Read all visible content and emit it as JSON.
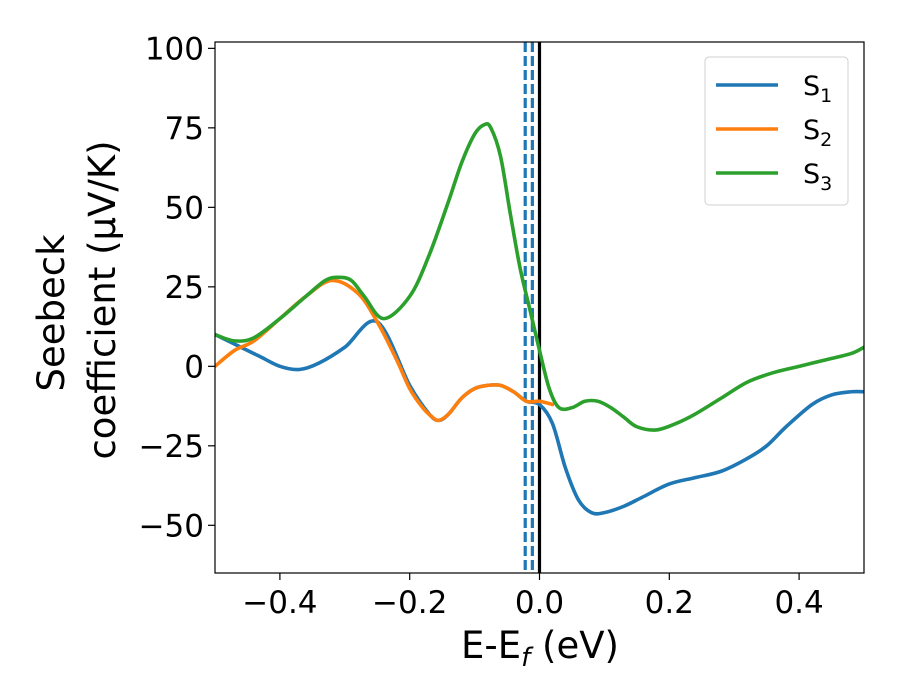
{
  "chart_data": {
    "type": "line",
    "xlabel_main": "E-E",
    "xlabel_sub": "f",
    "xlabel_unit": " (eV)",
    "ylabel_line1": "Seebeck",
    "ylabel_line2": "coefficient  (μV/K)",
    "xlim": [
      -0.5,
      0.5
    ],
    "ylim": [
      -65,
      102
    ],
    "xticks": [
      -0.4,
      -0.2,
      0.0,
      0.2,
      0.4
    ],
    "xtick_labels": [
      "−0.4",
      "−0.2",
      "0.0",
      "0.2",
      "0.4"
    ],
    "yticks": [
      -50,
      -25,
      0,
      25,
      50,
      75,
      100
    ],
    "ytick_labels": [
      "−50",
      "−25",
      "0",
      "25",
      "50",
      "75",
      "100"
    ],
    "grid": false,
    "legend_position": "top-right",
    "vlines": [
      {
        "x": -0.022,
        "style": "dashed",
        "color": "#1f77b4"
      },
      {
        "x": -0.011,
        "style": "dashed",
        "color": "#1f77b4"
      },
      {
        "x": 0.0,
        "style": "solid",
        "color": "#000000"
      }
    ],
    "series": [
      {
        "name": "S",
        "sub": "1",
        "color": "#1f77b4",
        "x": [
          -0.5,
          -0.46,
          -0.43,
          -0.4,
          -0.37,
          -0.34,
          -0.3,
          -0.25,
          -0.2,
          -0.17,
          -0.155,
          -0.14,
          -0.12,
          -0.1,
          -0.08,
          -0.06,
          -0.04,
          -0.02,
          0.0,
          0.02,
          0.04,
          0.06,
          0.08,
          0.1,
          0.13,
          0.16,
          0.2,
          0.24,
          0.28,
          0.32,
          0.35,
          0.38,
          0.42,
          0.45,
          0.48,
          0.5
        ],
        "y": [
          10,
          6,
          3,
          0,
          -1,
          1,
          6,
          14,
          -6,
          -15,
          -17,
          -15,
          -10,
          -7,
          -6,
          -6,
          -8,
          -11,
          -12,
          -18,
          -32,
          -42,
          -46,
          -46,
          -44,
          -41,
          -37,
          -35,
          -33,
          -29,
          -25,
          -19,
          -12,
          -9,
          -8,
          -8
        ]
      },
      {
        "name": "S",
        "sub": "2",
        "color": "#ff7f0e",
        "x": [
          -0.5,
          -0.47,
          -0.44,
          -0.4,
          -0.36,
          -0.32,
          -0.28,
          -0.25,
          -0.22,
          -0.2,
          -0.18,
          -0.165,
          -0.155,
          -0.14,
          -0.12,
          -0.1,
          -0.08,
          -0.06,
          -0.04,
          -0.02,
          0.0,
          0.02
        ],
        "y": [
          0,
          5,
          8,
          15,
          22,
          27,
          23,
          14,
          2,
          -7,
          -13,
          -16,
          -17,
          -15,
          -10,
          -7,
          -6,
          -6,
          -8,
          -11,
          -11,
          -12
        ]
      },
      {
        "name": "S",
        "sub": "3",
        "color": "#2ca02c",
        "x": [
          -0.5,
          -0.47,
          -0.44,
          -0.4,
          -0.36,
          -0.33,
          -0.31,
          -0.29,
          -0.27,
          -0.24,
          -0.2,
          -0.17,
          -0.14,
          -0.12,
          -0.1,
          -0.085,
          -0.075,
          -0.06,
          -0.045,
          -0.03,
          -0.015,
          0.0,
          0.015,
          0.03,
          0.05,
          0.07,
          0.09,
          0.11,
          0.13,
          0.15,
          0.18,
          0.21,
          0.24,
          0.28,
          0.32,
          0.36,
          0.4,
          0.44,
          0.48,
          0.5
        ],
        "y": [
          10,
          8,
          9,
          15,
          22,
          27,
          28,
          27,
          22,
          15,
          22,
          35,
          52,
          64,
          73,
          76,
          75,
          66,
          48,
          31,
          18,
          5,
          -7,
          -13,
          -13,
          -11,
          -11,
          -13,
          -16,
          -19,
          -20,
          -18,
          -15,
          -10,
          -5,
          -2,
          0,
          2,
          4,
          6
        ]
      }
    ]
  }
}
